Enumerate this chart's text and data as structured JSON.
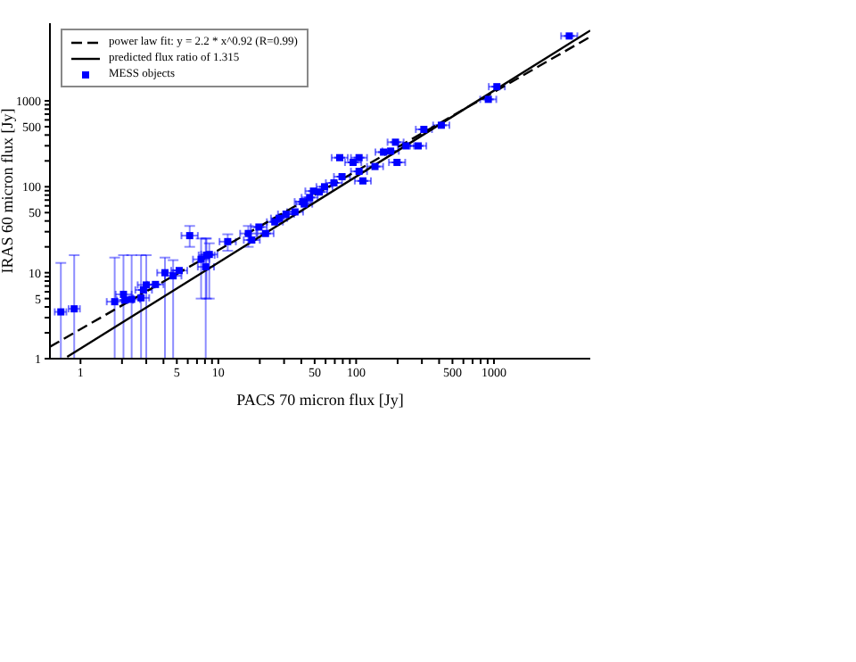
{
  "chart_data": {
    "type": "scatter",
    "xlabel": "PACS 70 micron flux [Jy]",
    "ylabel": "IRAS 60 micron flux [Jy]",
    "log": "xy",
    "grid": false,
    "legend": "top left",
    "xlim": [
      0.6,
      5000
    ],
    "ylim": [
      1,
      8000
    ],
    "xticks": [
      1,
      {
        "value": 2,
        "label": null
      },
      {
        "value": 3,
        "label": null
      },
      {
        "value": 4,
        "label": null
      },
      5,
      {
        "value": 6,
        "label": null
      },
      {
        "value": 7,
        "label": null
      },
      {
        "value": 8,
        "label": null
      },
      {
        "value": 9,
        "label": null
      },
      10,
      {
        "value": 20,
        "label": null
      },
      {
        "value": 30,
        "label": null
      },
      {
        "value": 40,
        "label": null
      },
      50,
      {
        "value": 60,
        "label": null
      },
      {
        "value": 70,
        "label": null
      },
      {
        "value": 80,
        "label": null
      },
      {
        "value": 90,
        "label": null
      },
      100,
      {
        "value": 200,
        "label": null
      },
      {
        "value": 300,
        "label": null
      },
      {
        "value": 400,
        "label": null
      },
      500,
      {
        "value": 600,
        "label": null
      },
      {
        "value": 700,
        "label": null
      },
      {
        "value": 800,
        "label": null
      },
      {
        "value": 900,
        "label": null
      },
      1000
    ],
    "yticks": [
      1,
      {
        "value": 2,
        "label": null
      },
      {
        "value": 3,
        "label": null
      },
      {
        "value": 4,
        "label": null
      },
      5,
      {
        "value": 6,
        "label": null
      },
      {
        "value": 7,
        "label": null
      },
      {
        "value": 8,
        "label": null
      },
      {
        "value": 9,
        "label": null
      },
      10,
      {
        "value": 20,
        "label": null
      },
      {
        "value": 30,
        "label": null
      },
      {
        "value": 40,
        "label": null
      },
      50,
      {
        "value": 60,
        "label": null
      },
      {
        "value": 70,
        "label": null
      },
      {
        "value": 80,
        "label": null
      },
      {
        "value": 90,
        "label": null
      },
      100,
      {
        "value": 200,
        "label": null
      },
      {
        "value": 300,
        "label": null
      },
      {
        "value": 400,
        "label": null
      },
      500,
      {
        "value": 600,
        "label": null
      },
      {
        "value": 700,
        "label": null
      },
      {
        "value": 800,
        "label": null
      },
      {
        "value": 900,
        "label": null
      },
      1000
    ],
    "series": [
      {
        "name": "power law fit: y = 2.2 * x^0.92 (R=0.99)",
        "type": "line",
        "line_style": "dashed",
        "color": "#000000",
        "x": [
          0.6,
          5000
        ],
        "values": [
          1.375,
          5566
        ]
      },
      {
        "name": "predicted flux ratio of 1.315",
        "type": "line",
        "line_style": "solid",
        "color": "#000000",
        "x": [
          0.8,
          5000
        ],
        "values": [
          1.05,
          6575
        ]
      },
      {
        "name": "MESS objects",
        "marker": "square",
        "color": "#0000ff",
        "x": [
          0.72,
          0.9,
          1.77,
          2.05,
          2.1,
          2.35,
          2.75,
          2.86,
          3.0,
          3.5,
          4.1,
          4.7,
          5.2,
          6.2,
          7.5,
          8.1,
          8.2,
          8.6,
          11.7,
          16.5,
          17.5,
          19.7,
          22,
          25.7,
          27.6,
          31,
          36,
          42,
          41,
          46,
          49,
          54,
          59,
          69,
          79,
          105,
          112,
          76,
          95,
          105,
          137,
          158,
          178,
          193,
          198,
          230,
          282,
          310,
          415,
          910,
          1050,
          3520
        ],
        "values": [
          3.5,
          3.8,
          4.6,
          5.6,
          4.8,
          4.9,
          5.1,
          6.3,
          7.2,
          7.3,
          10,
          9.2,
          10.6,
          27,
          14.3,
          11.7,
          16,
          16.3,
          23,
          28.6,
          24,
          34,
          28.6,
          39,
          43,
          48,
          51,
          63,
          67,
          75,
          89,
          87,
          100,
          111,
          131,
          151,
          117,
          218,
          192,
          218,
          172,
          253,
          260,
          330,
          192,
          299,
          299,
          465,
          520,
          1040,
          1460,
          5680
        ],
        "errors": [
          [
            1,
            13
          ],
          [
            1,
            16
          ],
          [
            1,
            15
          ],
          [
            1,
            16
          ],
          null,
          [
            1,
            16
          ],
          [
            1,
            16
          ],
          null,
          [
            1,
            16
          ],
          null,
          [
            1,
            15
          ],
          [
            1,
            14
          ],
          null,
          [
            20,
            35
          ],
          [
            5,
            25
          ],
          [
            1,
            25
          ],
          [
            5,
            25
          ],
          [
            5,
            22
          ],
          [
            18,
            28
          ],
          [
            20,
            35
          ],
          null,
          null,
          null,
          null,
          null,
          null,
          null,
          null,
          null,
          null,
          null,
          null,
          null,
          null,
          null,
          null,
          null,
          null,
          null,
          null,
          null,
          null,
          null,
          null,
          null,
          null,
          null,
          null,
          null,
          null,
          null,
          null
        ],
        "xerrors": [
          [
            0.65,
            0.79
          ],
          [
            0.82,
            0.99
          ],
          [
            1.55,
            2.02
          ],
          [
            1.8,
            2.35
          ],
          [
            1.84,
            2.4
          ],
          [
            2.05,
            2.7
          ],
          [
            2.4,
            3.15
          ],
          [
            2.5,
            3.3
          ],
          [
            2.6,
            3.45
          ],
          [
            3.05,
            4
          ],
          [
            3.6,
            4.7
          ],
          [
            4.1,
            5.4
          ],
          [
            4.55,
            5.95
          ],
          [
            5.4,
            7.1
          ],
          [
            6.55,
            8.6
          ],
          [
            7.1,
            9.3
          ],
          [
            7.2,
            9.4
          ],
          [
            7.5,
            9.85
          ],
          [
            10.2,
            13.4
          ],
          [
            14.4,
            18.9
          ],
          [
            15.3,
            20
          ],
          [
            17.2,
            22.5
          ],
          [
            19.2,
            25.2
          ],
          [
            22.5,
            29.4
          ],
          [
            24.1,
            31.6
          ],
          [
            27.1,
            35.5
          ],
          [
            31.5,
            41.2
          ],
          [
            36.7,
            48
          ],
          [
            35.8,
            46.9
          ],
          [
            40.2,
            52.6
          ],
          [
            42.8,
            56
          ],
          [
            47.2,
            61.8
          ],
          [
            51.5,
            67.5
          ],
          [
            60.3,
            79
          ],
          [
            69,
            90.4
          ],
          [
            91.7,
            120
          ],
          [
            97.8,
            128
          ],
          [
            66.4,
            87
          ],
          [
            83,
            109
          ],
          [
            91.7,
            120
          ],
          [
            120,
            157
          ],
          [
            138,
            181
          ],
          [
            155,
            204
          ],
          [
            169,
            221
          ],
          [
            173,
            227
          ],
          [
            201,
            263
          ],
          [
            246,
            323
          ],
          [
            271,
            355
          ],
          [
            362,
            475
          ],
          [
            795,
            1040
          ],
          [
            917,
            1200
          ],
          [
            3070,
            4030
          ]
        ]
      }
    ]
  }
}
